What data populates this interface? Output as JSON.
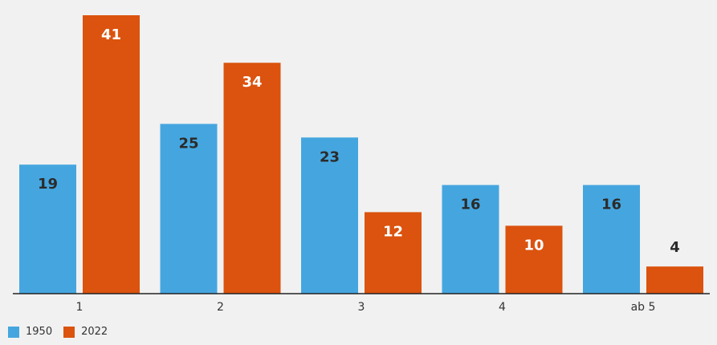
{
  "chart_data": {
    "type": "bar",
    "categories": [
      "1",
      "2",
      "3",
      "4",
      "ab 5"
    ],
    "series": [
      {
        "name": "1950",
        "values": [
          19,
          25,
          23,
          16,
          16
        ],
        "color": "#45a6df"
      },
      {
        "name": "2022",
        "values": [
          41,
          34,
          12,
          10,
          4
        ],
        "color": "#db530e"
      }
    ],
    "ylim": [
      0,
      43
    ],
    "title": "",
    "xlabel": "",
    "ylabel": "",
    "grid": false,
    "legend": "bottom-left"
  }
}
